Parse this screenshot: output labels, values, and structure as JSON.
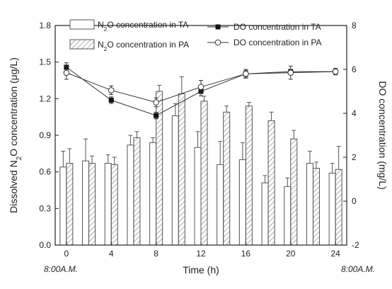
{
  "chart_data": {
    "type": "bar",
    "title": "",
    "x": [
      0,
      2,
      4,
      6,
      8,
      10,
      12,
      14,
      16,
      18,
      20,
      22,
      24
    ],
    "xticks": [
      0,
      4,
      8,
      12,
      16,
      20,
      24
    ],
    "xlim": [
      -1,
      25
    ],
    "xlabel": "Time (h)",
    "ylabel_left": "Dissolved N2O concentration (μg/L)",
    "ylabel_left_parts": [
      "Dissolved N",
      "2",
      "O concentration (μg/L)"
    ],
    "ylim_left": [
      0,
      1.8
    ],
    "yticks_left": [
      "0.0",
      "0.3",
      "0.6",
      "0.9",
      "1.2",
      "1.5",
      "1.8"
    ],
    "ylabel_right": "DO concentration (mg/L)",
    "ylim_right": [
      -2,
      8
    ],
    "yticks_right": [
      "-2",
      "0",
      "2",
      "4",
      "6",
      "8"
    ],
    "time_notes": [
      "8:00A.M.",
      "8:00A.M."
    ],
    "legend": [
      {
        "parts": [
          "N",
          "2",
          "O concentration in TA"
        ],
        "marker": "bar-open"
      },
      {
        "parts": [
          "N",
          "2",
          "O concentration in PA"
        ],
        "marker": "bar-hatched"
      },
      {
        "parts": [
          "DO concentration in TA"
        ],
        "marker": "line-filled-square"
      },
      {
        "parts": [
          "DO concentration in PA"
        ],
        "marker": "line-open-circle"
      }
    ],
    "series": [
      {
        "name": "N2O concentration in TA",
        "kind": "bar",
        "axis": "left",
        "fill": "open",
        "values": [
          0.64,
          0.69,
          0.67,
          0.82,
          0.84,
          1.06,
          0.8,
          0.66,
          0.7,
          0.51,
          0.48,
          0.67,
          0.59
        ],
        "errors": [
          0.13,
          0.18,
          0.07,
          0.08,
          0.04,
          0.1,
          0.13,
          0.19,
          0.14,
          0.06,
          0.07,
          0.1,
          0.08
        ]
      },
      {
        "name": "N2O concentration in PA",
        "kind": "bar",
        "axis": "left",
        "fill": "hatched",
        "values": [
          0.67,
          0.67,
          0.66,
          0.88,
          1.26,
          1.24,
          1.18,
          1.09,
          1.14,
          1.02,
          0.87,
          0.63,
          0.62
        ],
        "errors": [
          0.12,
          0.06,
          0.06,
          0.05,
          0.05,
          0.14,
          0.04,
          0.05,
          0.03,
          0.07,
          0.07,
          0.05,
          0.19
        ]
      },
      {
        "name": "DO concentration in TA",
        "kind": "line",
        "axis": "right",
        "marker": "filled-square",
        "x": [
          0,
          4,
          8,
          12,
          16,
          20,
          24
        ],
        "values": [
          6.1,
          4.6,
          3.9,
          5.0,
          5.8,
          5.9,
          5.9
        ],
        "errors": [
          0.2,
          0.15,
          0.15,
          0.2,
          0.15,
          0.1,
          0.1
        ]
      },
      {
        "name": "DO concentration in PA",
        "kind": "line",
        "axis": "right",
        "marker": "open-circle",
        "x": [
          0,
          4,
          8,
          12,
          16,
          20,
          24
        ],
        "values": [
          5.85,
          5.05,
          4.5,
          5.2,
          5.8,
          5.85,
          5.9
        ],
        "errors": [
          0.3,
          0.2,
          0.2,
          0.3,
          0.2,
          0.3,
          0.15
        ]
      }
    ],
    "colors": {
      "axis": "#222222",
      "bar_stroke": "#555555",
      "hatch": "#777777",
      "line": "#333333"
    }
  }
}
